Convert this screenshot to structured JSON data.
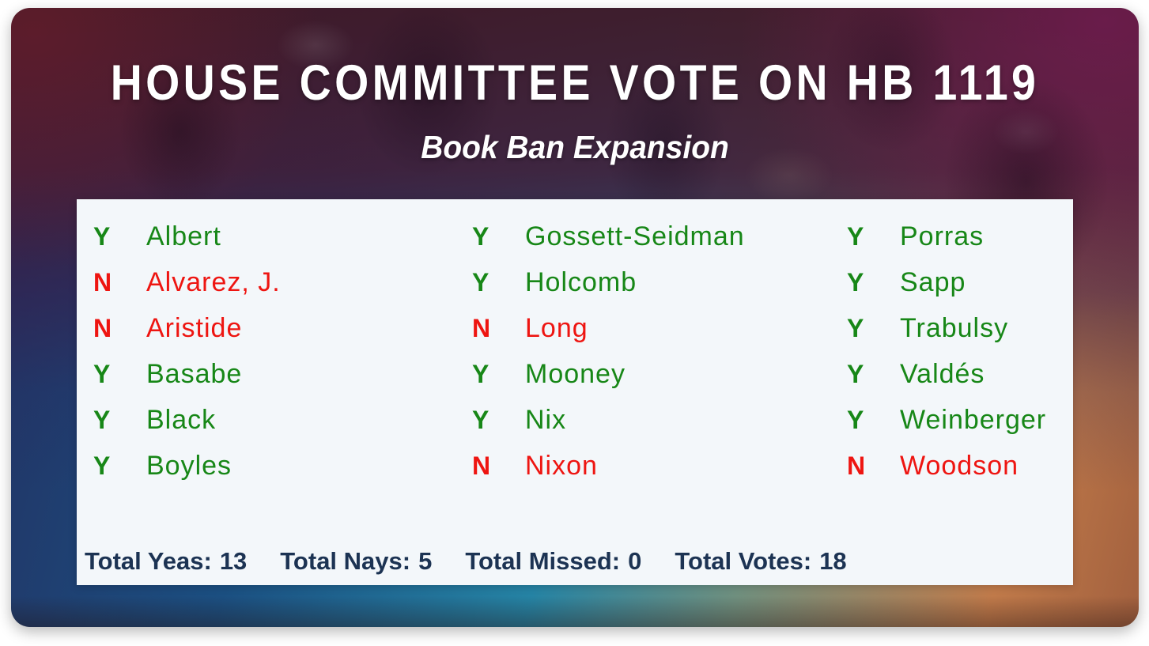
{
  "header": {
    "title": "HOUSE COMMITTEE VOTE ON HB 1119",
    "subtitle": "Book Ban Expansion"
  },
  "votes": {
    "columns": [
      {
        "entries": [
          {
            "vote": "Y",
            "name": "Albert"
          },
          {
            "vote": "N",
            "name": "Alvarez, J."
          },
          {
            "vote": "N",
            "name": "Aristide"
          },
          {
            "vote": "Y",
            "name": "Basabe"
          },
          {
            "vote": "Y",
            "name": "Black"
          },
          {
            "vote": "Y",
            "name": "Boyles"
          }
        ]
      },
      {
        "entries": [
          {
            "vote": "Y",
            "name": "Gossett-Seidman"
          },
          {
            "vote": "Y",
            "name": "Holcomb"
          },
          {
            "vote": "N",
            "name": "Long"
          },
          {
            "vote": "Y",
            "name": "Mooney"
          },
          {
            "vote": "Y",
            "name": "Nix"
          },
          {
            "vote": "N",
            "name": "Nixon"
          }
        ]
      },
      {
        "entries": [
          {
            "vote": "Y",
            "name": "Porras"
          },
          {
            "vote": "Y",
            "name": "Sapp"
          },
          {
            "vote": "Y",
            "name": "Trabulsy"
          },
          {
            "vote": "Y",
            "name": "Valdés"
          },
          {
            "vote": "Y",
            "name": "Weinberger"
          },
          {
            "vote": "N",
            "name": "Woodson"
          }
        ]
      }
    ]
  },
  "totals": [
    {
      "label": "Total Yeas:",
      "value": "13"
    },
    {
      "label": "Total Nays:",
      "value": "5"
    },
    {
      "label": "Total Missed:",
      "value": "0"
    },
    {
      "label": "Total Votes:",
      "value": "18"
    }
  ],
  "colors": {
    "yea": "#178717",
    "nay": "#ee1511",
    "totals": "#1c3353",
    "panel": "#f3f7fa"
  }
}
